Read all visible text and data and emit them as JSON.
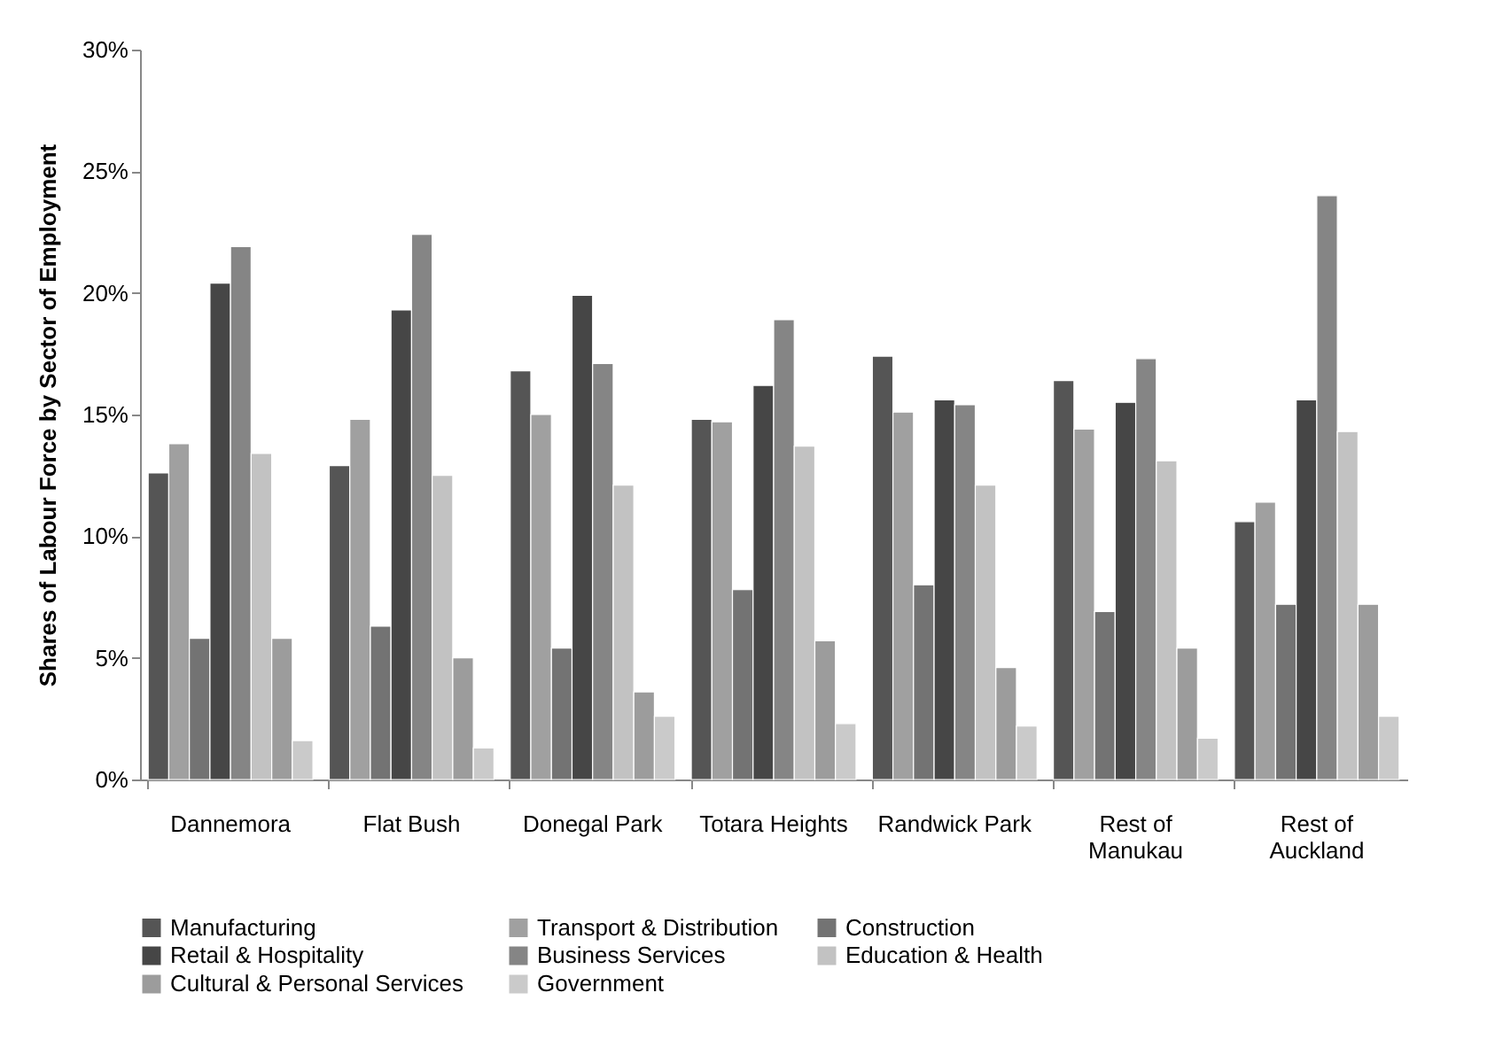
{
  "chart_data": {
    "type": "bar",
    "ylabel": "Shares of Labour Force by Sector of Employment",
    "categories": [
      "Dannemora",
      "Flat Bush",
      "Donegal Park",
      "Totara Heights",
      "Randwick Park",
      "Rest of Manukau",
      "Rest of Auckland"
    ],
    "series": [
      {
        "name": "Manufacturing",
        "color": "#555555",
        "values": [
          12.6,
          12.9,
          16.8,
          14.8,
          17.4,
          16.4,
          10.6
        ]
      },
      {
        "name": "Transport & Distribution",
        "color": "#a0a0a0",
        "values": [
          13.8,
          14.8,
          15.0,
          14.7,
          15.1,
          14.4,
          11.4
        ]
      },
      {
        "name": "Construction",
        "color": "#737373",
        "values": [
          5.8,
          6.3,
          5.4,
          7.8,
          8.0,
          6.9,
          7.2
        ]
      },
      {
        "name": "Retail & Hospitality",
        "color": "#464646",
        "values": [
          20.4,
          19.3,
          19.9,
          16.2,
          15.6,
          15.5,
          15.6
        ]
      },
      {
        "name": "Business Services",
        "color": "#858585",
        "values": [
          21.9,
          22.4,
          17.1,
          18.9,
          15.4,
          17.3,
          24.0
        ]
      },
      {
        "name": "Education & Health",
        "color": "#c2c2c2",
        "values": [
          13.4,
          12.5,
          12.1,
          13.7,
          12.1,
          13.1,
          14.3
        ]
      },
      {
        "name": "Cultural  & Personal Services",
        "color": "#9c9c9c",
        "values": [
          5.8,
          5.0,
          3.6,
          5.7,
          4.6,
          5.4,
          7.2
        ]
      },
      {
        "name": "Government",
        "color": "#cacaca",
        "values": [
          1.6,
          1.3,
          2.6,
          2.3,
          2.2,
          1.7,
          2.6
        ]
      }
    ],
    "ylim": [
      0,
      30
    ],
    "yticks": [
      {
        "value": 0,
        "label": "0%"
      },
      {
        "value": 5,
        "label": "5%"
      },
      {
        "value": 10,
        "label": "10%"
      },
      {
        "value": 15,
        "label": "15%"
      },
      {
        "value": 20,
        "label": "20%"
      },
      {
        "value": 25,
        "label": "25%"
      },
      {
        "value": 30,
        "label": "30%"
      }
    ],
    "grid": false,
    "legend": "bottom"
  }
}
